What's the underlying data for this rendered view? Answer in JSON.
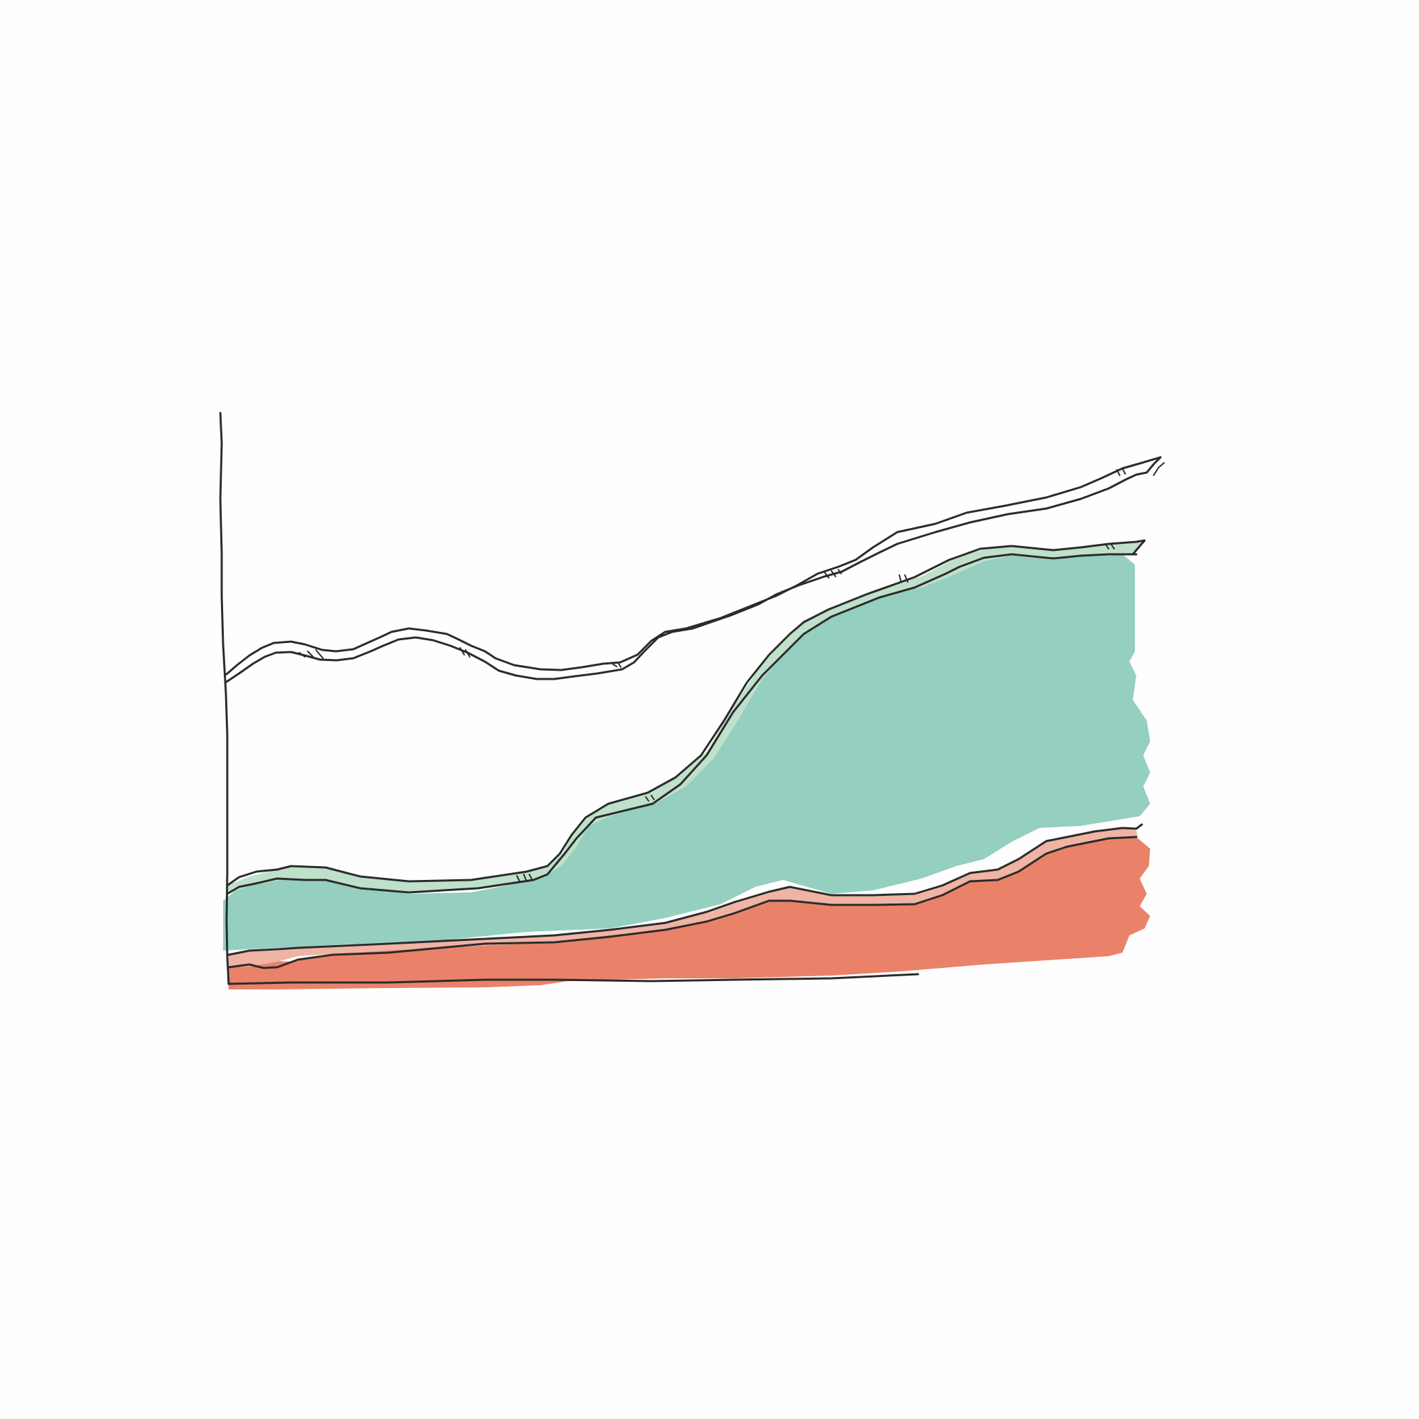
{
  "illustration": {
    "kind": "hand-drawn stacked area chart doodle",
    "has_text": false,
    "colors": {
      "background": "#fefefe",
      "ink": "#2b2b2b",
      "teal_fill": "#95cfbf",
      "teal_band": "#bfe0cb",
      "coral_fill": "#ea826a",
      "coral_band": "#efb4a4",
      "white_band": "#ffffff"
    },
    "icons": [
      "sketch-y-axis",
      "sketch-x-axis",
      "teal-area-layer",
      "coral-area-layer",
      "top-ribbon-line"
    ]
  }
}
